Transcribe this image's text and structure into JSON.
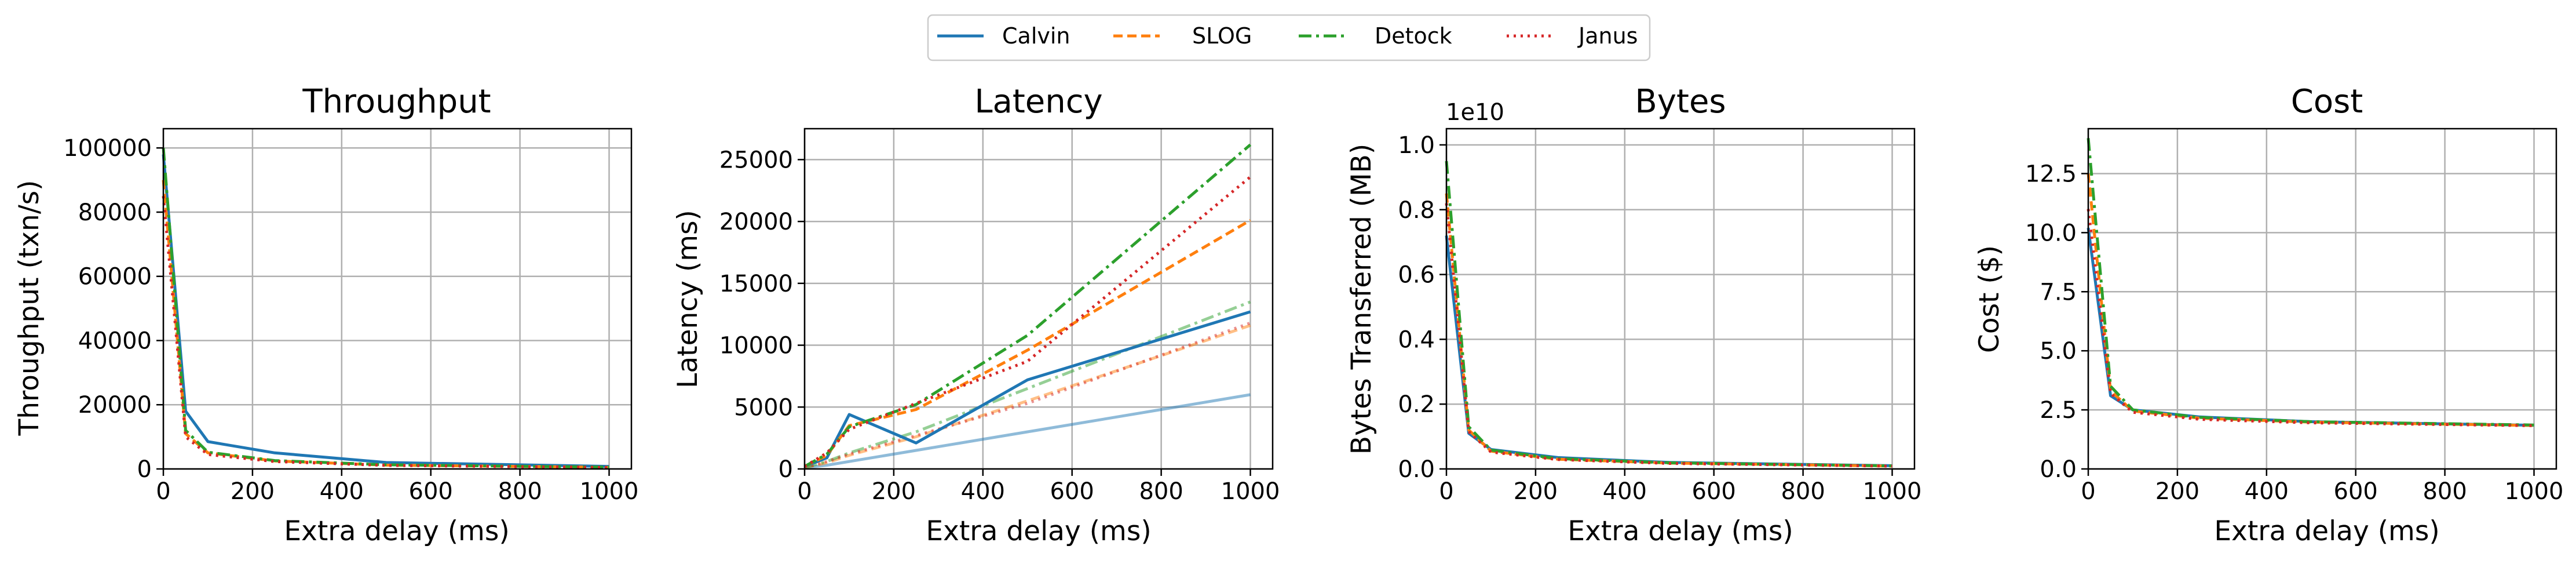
{
  "legend": {
    "placement": "top-center",
    "entries": [
      {
        "name": "Calvin",
        "color": "#1f77b4",
        "dash": "solid"
      },
      {
        "name": "SLOG",
        "color": "#ff7f0e",
        "dash": "dashed"
      },
      {
        "name": "Detock",
        "color": "#2ca02c",
        "dash": "dashdot"
      },
      {
        "name": "Janus",
        "color": "#d62728",
        "dash": "dotted"
      }
    ]
  },
  "chart_data": [
    {
      "type": "line",
      "title": "Throughput",
      "xlabel": "Extra delay (ms)",
      "ylabel": "Throughput (txn/s)",
      "offset_text": "",
      "xlim": [
        0,
        1050
      ],
      "ylim": [
        0,
        106000
      ],
      "grid": true,
      "xticks": [
        0,
        200,
        400,
        600,
        800,
        1000
      ],
      "xtick_labels": [
        "0",
        "200",
        "400",
        "600",
        "800",
        "1000"
      ],
      "yticks": [
        0,
        20000,
        40000,
        60000,
        80000,
        100000
      ],
      "ytick_labels": [
        "0",
        "20000",
        "40000",
        "60000",
        "80000",
        "100000"
      ],
      "x": [
        0,
        50,
        100,
        250,
        500,
        1000
      ],
      "series": [
        {
          "name": "Calvin",
          "values": [
            98000,
            18000,
            8500,
            5000,
            2000,
            800
          ]
        },
        {
          "name": "SLOG",
          "values": [
            90000,
            11000,
            5000,
            2500,
            1200,
            500
          ]
        },
        {
          "name": "Detock",
          "values": [
            100000,
            12000,
            5200,
            2600,
            1300,
            550
          ]
        },
        {
          "name": "Janus",
          "values": [
            85000,
            10000,
            4500,
            2300,
            1100,
            450
          ]
        }
      ]
    },
    {
      "type": "line",
      "title": "Latency",
      "xlabel": "Extra delay (ms)",
      "ylabel": "Latency (ms)",
      "offset_text": "",
      "xlim": [
        0,
        1050
      ],
      "ylim": [
        0,
        27500
      ],
      "grid": true,
      "xticks": [
        0,
        200,
        400,
        600,
        800,
        1000
      ],
      "xtick_labels": [
        "0",
        "200",
        "400",
        "600",
        "800",
        "1000"
      ],
      "yticks": [
        0,
        5000,
        10000,
        15000,
        20000,
        25000
      ],
      "ytick_labels": [
        "0",
        "5000",
        "10000",
        "15000",
        "20000",
        "25000"
      ],
      "x": [
        0,
        50,
        100,
        250,
        500,
        1000
      ],
      "series": [
        {
          "name": "Calvin",
          "values": [
            200,
            900,
            4400,
            2100,
            7200,
            12700
          ]
        },
        {
          "name": "SLOG",
          "values": [
            200,
            1100,
            3500,
            4800,
            9600,
            20100
          ]
        },
        {
          "name": "Detock",
          "values": [
            200,
            1200,
            3400,
            5200,
            10800,
            26200
          ]
        },
        {
          "name": "Janus",
          "values": [
            200,
            1300,
            3200,
            5300,
            8700,
            23600
          ]
        },
        {
          "name": "",
          "base": "Calvin",
          "faint": true,
          "values": [
            100,
            300,
            600,
            1500,
            3000,
            6000
          ]
        },
        {
          "name": "",
          "base": "SLOG",
          "faint": true,
          "values": [
            100,
            500,
            1100,
            2600,
            5500,
            11600
          ]
        },
        {
          "name": "",
          "base": "Detock",
          "faint": true,
          "values": [
            100,
            600,
            1300,
            3000,
            6500,
            13500
          ]
        },
        {
          "name": "",
          "base": "Janus",
          "faint": true,
          "values": [
            100,
            600,
            1200,
            2700,
            5300,
            11800
          ]
        }
      ]
    },
    {
      "type": "line",
      "title": "Bytes",
      "xlabel": "Extra delay (ms)",
      "ylabel": "Bytes Transferred (MB)",
      "offset_text": "1e10",
      "xlim": [
        0,
        1050
      ],
      "ylim": [
        0,
        1.05
      ],
      "grid": true,
      "xticks": [
        0,
        200,
        400,
        600,
        800,
        1000
      ],
      "xtick_labels": [
        "0",
        "200",
        "400",
        "600",
        "800",
        "1000"
      ],
      "yticks": [
        0,
        0.2,
        0.4,
        0.6,
        0.8,
        1.0
      ],
      "ytick_labels": [
        "0.0",
        "0.2",
        "0.4",
        "0.6",
        "0.8",
        "1.0"
      ],
      "x": [
        0,
        50,
        100,
        250,
        500,
        1000
      ],
      "series": [
        {
          "name": "Calvin",
          "values": [
            0.72,
            0.11,
            0.06,
            0.035,
            0.02,
            0.01
          ]
        },
        {
          "name": "SLOG",
          "values": [
            0.85,
            0.12,
            0.055,
            0.03,
            0.018,
            0.009
          ]
        },
        {
          "name": "Detock",
          "values": [
            0.95,
            0.13,
            0.058,
            0.032,
            0.019,
            0.0095
          ]
        },
        {
          "name": "Janus",
          "values": [
            0.82,
            0.115,
            0.052,
            0.029,
            0.017,
            0.0085
          ]
        }
      ]
    },
    {
      "type": "line",
      "title": "Cost",
      "xlabel": "Extra delay (ms)",
      "ylabel": "Cost ($)",
      "offset_text": "",
      "xlim": [
        0,
        1050
      ],
      "ylim": [
        0,
        14.4
      ],
      "grid": true,
      "xticks": [
        0,
        200,
        400,
        600,
        800,
        1000
      ],
      "xtick_labels": [
        "0",
        "200",
        "400",
        "600",
        "800",
        "1000"
      ],
      "yticks": [
        0,
        2.5,
        5.0,
        7.5,
        10.0,
        12.5
      ],
      "ytick_labels": [
        "0.0",
        "2.5",
        "5.0",
        "7.5",
        "10.0",
        "12.5"
      ],
      "x": [
        0,
        50,
        100,
        250,
        500,
        1000
      ],
      "series": [
        {
          "name": "Calvin",
          "values": [
            10.2,
            3.1,
            2.5,
            2.2,
            2.0,
            1.85
          ]
        },
        {
          "name": "SLOG",
          "values": [
            12.5,
            3.3,
            2.45,
            2.15,
            1.98,
            1.84
          ]
        },
        {
          "name": "Detock",
          "values": [
            14.0,
            3.5,
            2.5,
            2.18,
            2.0,
            1.86
          ]
        },
        {
          "name": "Janus",
          "values": [
            11.0,
            3.2,
            2.4,
            2.1,
            1.95,
            1.83
          ]
        }
      ]
    }
  ]
}
